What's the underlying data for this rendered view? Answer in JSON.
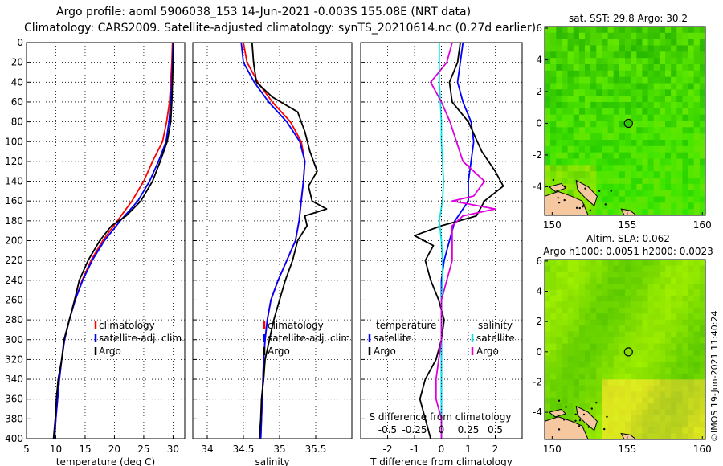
{
  "title": {
    "line1": "Argo profile: aoml 5906038_153 14-Jun-2021 -0.003S 155.08E (NRT data)",
    "line2": "Climatology: CARS2009. Satellite-adjusted climatology: synTS_20210614.nc (0.27d earlier)"
  },
  "chart_data": [
    {
      "id": "temperature",
      "type": "line",
      "xlabel": "temperature (deg C)",
      "ylabel": "",
      "xlim": [
        5,
        32
      ],
      "ylim": [
        400,
        0
      ],
      "xticks": [
        "5",
        "10",
        "15",
        "20",
        "25",
        "30"
      ],
      "xtick_values": [
        5,
        10,
        15,
        20,
        25,
        30
      ],
      "yticks": [
        "0",
        "20",
        "40",
        "60",
        "80",
        "100",
        "120",
        "140",
        "160",
        "180",
        "200",
        "220",
        "240",
        "260",
        "280",
        "300",
        "320",
        "340",
        "360",
        "380",
        "400"
      ],
      "ytick_values": [
        0,
        20,
        40,
        60,
        80,
        100,
        120,
        140,
        160,
        180,
        200,
        220,
        240,
        260,
        280,
        300,
        320,
        340,
        360,
        380,
        400
      ],
      "legend": [
        "climatology",
        "satellite-adj. clim.",
        "Argo"
      ],
      "legend_position": "lower-right",
      "series": [
        {
          "name": "climatology",
          "color": "#ff0000",
          "points": [
            [
              29.9,
              0
            ],
            [
              29.8,
              20
            ],
            [
              29.6,
              40
            ],
            [
              29.4,
              60
            ],
            [
              28.9,
              80
            ],
            [
              28.2,
              100
            ],
            [
              26.5,
              120
            ],
            [
              25.0,
              140
            ],
            [
              23.0,
              160
            ],
            [
              20.5,
              180
            ],
            [
              18.0,
              200
            ],
            [
              16.0,
              220
            ],
            [
              14.5,
              240
            ],
            [
              13.3,
              260
            ],
            [
              12.3,
              280
            ],
            [
              11.5,
              300
            ],
            [
              11.0,
              320
            ],
            [
              10.6,
              340
            ],
            [
              10.3,
              360
            ],
            [
              10.0,
              380
            ],
            [
              9.8,
              400
            ]
          ]
        },
        {
          "name": "satellite-adj. clim.",
          "color": "#0000ff",
          "points": [
            [
              30.0,
              0
            ],
            [
              29.9,
              20
            ],
            [
              29.8,
              40
            ],
            [
              29.6,
              60
            ],
            [
              29.3,
              80
            ],
            [
              28.8,
              100
            ],
            [
              27.5,
              120
            ],
            [
              26.0,
              140
            ],
            [
              24.0,
              160
            ],
            [
              21.0,
              180
            ],
            [
              18.3,
              200
            ],
            [
              16.2,
              220
            ],
            [
              14.6,
              240
            ],
            [
              13.3,
              260
            ],
            [
              12.3,
              280
            ],
            [
              11.5,
              300
            ],
            [
              11.0,
              320
            ],
            [
              10.6,
              340
            ],
            [
              10.3,
              360
            ],
            [
              10.0,
              380
            ],
            [
              9.8,
              400
            ]
          ]
        },
        {
          "name": "Argo",
          "color": "#000000",
          "points": [
            [
              30.1,
              0
            ],
            [
              30.0,
              20
            ],
            [
              29.9,
              40
            ],
            [
              29.8,
              60
            ],
            [
              29.6,
              80
            ],
            [
              29.0,
              100
            ],
            [
              27.8,
              120
            ],
            [
              26.5,
              140
            ],
            [
              24.5,
              160
            ],
            [
              22.0,
              175
            ],
            [
              19.5,
              185
            ],
            [
              17.5,
              200
            ],
            [
              15.5,
              220
            ],
            [
              14.0,
              240
            ],
            [
              13.2,
              260
            ],
            [
              12.3,
              280
            ],
            [
              11.4,
              300
            ],
            [
              11.0,
              320
            ],
            [
              10.4,
              340
            ],
            [
              10.1,
              360
            ],
            [
              9.9,
              380
            ],
            [
              9.6,
              400
            ]
          ]
        }
      ]
    },
    {
      "id": "salinity",
      "type": "line",
      "xlabel": "salinity",
      "ylabel": "",
      "xlim": [
        33.8,
        36.0
      ],
      "ylim": [
        400,
        0
      ],
      "xticks": [
        "34",
        "34.5",
        "35",
        "35.5"
      ],
      "xtick_values": [
        34,
        34.5,
        35,
        35.5
      ],
      "legend": [
        "climatology",
        "satellite-adj. clim.",
        "Argo"
      ],
      "legend_position": "lower-right",
      "series": [
        {
          "name": "climatology",
          "color": "#ff0000",
          "points": [
            [
              34.5,
              0
            ],
            [
              34.55,
              20
            ],
            [
              34.7,
              40
            ],
            [
              34.9,
              60
            ],
            [
              35.15,
              80
            ],
            [
              35.3,
              100
            ],
            [
              35.35,
              120
            ],
            [
              35.33,
              140
            ],
            [
              35.3,
              160
            ],
            [
              35.27,
              180
            ],
            [
              35.22,
              200
            ],
            [
              35.1,
              220
            ],
            [
              34.98,
              240
            ],
            [
              34.88,
              260
            ],
            [
              34.83,
              280
            ],
            [
              34.8,
              300
            ],
            [
              34.78,
              320
            ],
            [
              34.77,
              340
            ],
            [
              34.76,
              360
            ],
            [
              34.75,
              380
            ],
            [
              34.74,
              400
            ]
          ]
        },
        {
          "name": "satellite-adj. clim.",
          "color": "#0000ff",
          "points": [
            [
              34.47,
              0
            ],
            [
              34.5,
              20
            ],
            [
              34.65,
              40
            ],
            [
              34.85,
              60
            ],
            [
              35.1,
              80
            ],
            [
              35.28,
              100
            ],
            [
              35.35,
              120
            ],
            [
              35.33,
              140
            ],
            [
              35.3,
              160
            ],
            [
              35.27,
              180
            ],
            [
              35.22,
              200
            ],
            [
              35.1,
              220
            ],
            [
              34.98,
              240
            ],
            [
              34.88,
              260
            ],
            [
              34.83,
              280
            ],
            [
              34.8,
              300
            ],
            [
              34.78,
              320
            ],
            [
              34.77,
              340
            ],
            [
              34.76,
              360
            ],
            [
              34.75,
              380
            ],
            [
              34.74,
              400
            ]
          ]
        },
        {
          "name": "Argo",
          "color": "#000000",
          "points": [
            [
              34.62,
              0
            ],
            [
              34.64,
              20
            ],
            [
              34.68,
              40
            ],
            [
              34.9,
              55
            ],
            [
              35.25,
              70
            ],
            [
              35.35,
              90
            ],
            [
              35.42,
              110
            ],
            [
              35.52,
              130
            ],
            [
              35.4,
              145
            ],
            [
              35.45,
              160
            ],
            [
              35.65,
              168
            ],
            [
              35.35,
              175
            ],
            [
              35.38,
              185
            ],
            [
              35.25,
              200
            ],
            [
              35.18,
              220
            ],
            [
              35.08,
              240
            ],
            [
              35.0,
              260
            ],
            [
              34.92,
              280
            ],
            [
              34.86,
              300
            ],
            [
              34.8,
              320
            ],
            [
              34.78,
              340
            ],
            [
              34.75,
              360
            ],
            [
              34.74,
              380
            ],
            [
              34.72,
              400
            ]
          ]
        }
      ]
    },
    {
      "id": "difference",
      "type": "line",
      "xlabel": "T difference from climatology",
      "secondary_xlabel": "S difference from climatology",
      "xlim": [
        -3,
        3
      ],
      "ylim": [
        400,
        0
      ],
      "xticks": [
        "-2",
        "-1",
        "0",
        "1",
        "2"
      ],
      "xtick_values": [
        -2,
        -1,
        0,
        1,
        2
      ],
      "secondary_xticks": [
        "-0.5",
        "-0.25",
        "0",
        "0.25",
        "0.5"
      ],
      "legend_temperature_title": "temperature",
      "legend_salinity_title": "salinity",
      "legend_temperature": [
        "satellite",
        "Argo"
      ],
      "legend_salinity": [
        "satellite",
        "Argo"
      ],
      "series": [
        {
          "name": "T satellite",
          "color": "#0000ff",
          "points": [
            [
              0.8,
              0
            ],
            [
              0.7,
              20
            ],
            [
              0.6,
              40
            ],
            [
              0.8,
              60
            ],
            [
              1.1,
              80
            ],
            [
              1.2,
              100
            ],
            [
              1.1,
              120
            ],
            [
              1.0,
              140
            ],
            [
              1.0,
              160
            ],
            [
              0.5,
              180
            ],
            [
              0.3,
              200
            ],
            [
              0.1,
              220
            ],
            [
              0.0,
              240
            ],
            [
              0.0,
              260
            ],
            [
              0.0,
              300
            ],
            [
              0.0,
              400
            ]
          ]
        },
        {
          "name": "T Argo",
          "color": "#000000",
          "points": [
            [
              0.7,
              0
            ],
            [
              0.6,
              20
            ],
            [
              0.3,
              40
            ],
            [
              0.4,
              60
            ],
            [
              1.0,
              80
            ],
            [
              1.5,
              110
            ],
            [
              2.0,
              130
            ],
            [
              2.3,
              145
            ],
            [
              1.6,
              160
            ],
            [
              1.3,
              175
            ],
            [
              0.0,
              185
            ],
            [
              -1.0,
              195
            ],
            [
              -0.3,
              205
            ],
            [
              -0.6,
              220
            ],
            [
              -0.4,
              240
            ],
            [
              -0.1,
              260
            ],
            [
              0.1,
              280
            ],
            [
              0.0,
              300
            ],
            [
              -0.2,
              320
            ],
            [
              -0.6,
              340
            ],
            [
              -0.8,
              360
            ],
            [
              -0.6,
              380
            ],
            [
              -0.4,
              400
            ]
          ]
        },
        {
          "name": "S satellite",
          "color": "#00e5e5",
          "points": [
            [
              -0.02,
              0
            ],
            [
              -0.02,
              20
            ],
            [
              -0.02,
              40
            ],
            [
              -0.01,
              60
            ],
            [
              0.0,
              80
            ],
            [
              0.0,
              100
            ],
            [
              0.01,
              120
            ],
            [
              0.02,
              140
            ],
            [
              0.01,
              160
            ],
            [
              -0.02,
              180
            ],
            [
              0.0,
              200
            ],
            [
              0.01,
              220
            ],
            [
              0.01,
              240
            ],
            [
              0.0,
              260
            ],
            [
              0.0,
              300
            ],
            [
              0.0,
              400
            ]
          ]
        },
        {
          "name": "S Argo",
          "color": "#dd00dd",
          "points": [
            [
              0.1,
              0
            ],
            [
              0.05,
              20
            ],
            [
              -0.1,
              40
            ],
            [
              0.0,
              60
            ],
            [
              0.08,
              80
            ],
            [
              0.2,
              120
            ],
            [
              0.4,
              140
            ],
            [
              0.3,
              155
            ],
            [
              0.1,
              160
            ],
            [
              0.5,
              168
            ],
            [
              0.2,
              175
            ],
            [
              0.1,
              185
            ],
            [
              0.1,
              200
            ],
            [
              0.1,
              220
            ],
            [
              0.05,
              240
            ],
            [
              0.0,
              260
            ],
            [
              0.0,
              300
            ],
            [
              -0.05,
              340
            ],
            [
              -0.05,
              360
            ],
            [
              0.0,
              380
            ],
            [
              0.0,
              400
            ]
          ]
        }
      ]
    },
    {
      "id": "sst_map",
      "type": "heatmap",
      "title": "sat. SST: 29.8 Argo: 30.2",
      "xticks": [
        "150",
        "155",
        "160"
      ],
      "xtick_values": [
        150,
        155,
        160
      ],
      "yticks": [
        "6",
        "4",
        "2",
        "0",
        "-2",
        "-4"
      ],
      "ytick_values": [
        6,
        4,
        2,
        0,
        -2,
        -4
      ],
      "xlim": [
        149.5,
        160.2
      ],
      "ylim": [
        -5.8,
        6.1
      ],
      "marker": [
        155.08,
        -0.003
      ]
    },
    {
      "id": "sla_map",
      "type": "heatmap",
      "title_line1": "Altim. SLA: 0.062",
      "title_line2": "Argo h1000: 0.0051 h2000: 0.0023",
      "xticks": [
        "150",
        "155",
        "160"
      ],
      "xtick_values": [
        150,
        155,
        160
      ],
      "yticks": [
        "6",
        "4",
        "2",
        "0",
        "-2",
        "-4"
      ],
      "ytick_values": [
        6,
        4,
        2,
        0,
        -2,
        -4
      ],
      "xlim": [
        149.5,
        160.2
      ],
      "ylim": [
        -5.8,
        6.1
      ],
      "marker": [
        155.08,
        -0.003
      ]
    }
  ],
  "credit": "©IMOS 19-Jun-2021 11:40:24"
}
